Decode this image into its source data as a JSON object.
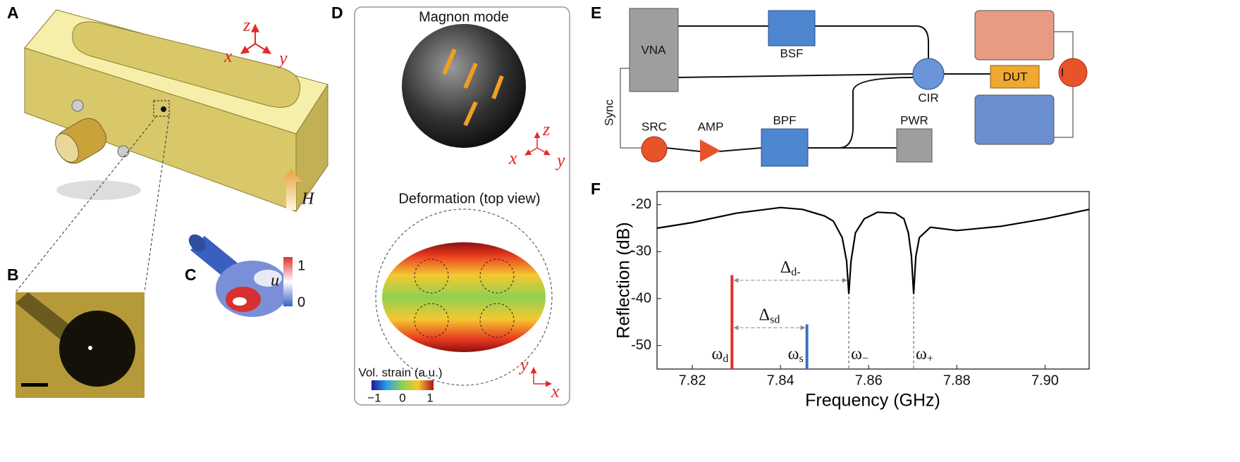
{
  "panel_labels": [
    "A",
    "B",
    "C",
    "D",
    "E",
    "F"
  ],
  "panel_a": {
    "axes": [
      "z",
      "x",
      "y"
    ],
    "field": "H"
  },
  "panel_c": {
    "colorbar_symbol": "u",
    "colorbar_max": "1",
    "colorbar_min": "0"
  },
  "panel_d": {
    "title_top": "Magnon mode",
    "axes_top": [
      "z",
      "x",
      "y"
    ],
    "title_bottom": "Deformation (top view)",
    "colorbar_label": "Vol. strain (a.u.)",
    "colorbar_ticks": [
      "−1",
      "0",
      "1"
    ],
    "axes_bottom": [
      "y",
      "x"
    ]
  },
  "panel_e": {
    "blocks": [
      "VNA",
      "BSF",
      "CIR",
      "DUT",
      "SRC",
      "AMP",
      "BPF",
      "PWR"
    ],
    "sync": "Sync",
    "current": "I"
  },
  "chart_data": {
    "type": "line",
    "x_label": "Frequency (GHz)",
    "y_label": "Reflection (dB)",
    "color": "#000000",
    "xlim": [
      7.812,
      7.91
    ],
    "ylim": [
      -55,
      -17.2
    ],
    "xticks": [
      7.82,
      7.84,
      7.86,
      7.88,
      {
        "value": 7.9,
        "label": "7.90"
      }
    ],
    "yticks": [
      -20,
      -30,
      -40,
      -50
    ],
    "x": [
      7.812,
      7.82,
      7.83,
      7.84,
      7.845,
      7.85,
      7.852,
      7.854,
      7.855,
      7.8555,
      7.856,
      7.857,
      7.859,
      7.862,
      7.866,
      7.868,
      7.869,
      7.8697,
      7.8702,
      7.8707,
      7.8715,
      7.874,
      7.88,
      7.89,
      7.9,
      7.91
    ],
    "values": [
      -25,
      -23.8,
      -21.8,
      -20.6,
      -21,
      -22.4,
      -23.5,
      -27,
      -32,
      -39,
      -32,
      -26,
      -23,
      -21.6,
      -21.8,
      -23,
      -26,
      -31,
      -39,
      -31,
      -27,
      -24.8,
      -25.5,
      -24.6,
      -23,
      -21
    ],
    "markers": [
      {
        "label": "ω",
        "sub": "d",
        "x": 7.829,
        "top": -35,
        "color": "#e03030"
      },
      {
        "label": "ω",
        "sub": "s",
        "x": 7.846,
        "top": -45.5,
        "color": "#3a6fc0"
      }
    ],
    "dashed": [
      {
        "label": "ω",
        "sub": "−",
        "x": 7.8555,
        "top": -38.5
      },
      {
        "label": "ω",
        "sub": "+",
        "x": 7.8702,
        "top": -38.5
      }
    ],
    "spans": [
      {
        "label": "Δ",
        "sub": "d-",
        "from": 7.829,
        "to": 7.8555,
        "y": -36.1
      },
      {
        "label": "Δ",
        "sub": "sd",
        "from": 7.829,
        "to": 7.846,
        "y": -46.2
      }
    ]
  }
}
